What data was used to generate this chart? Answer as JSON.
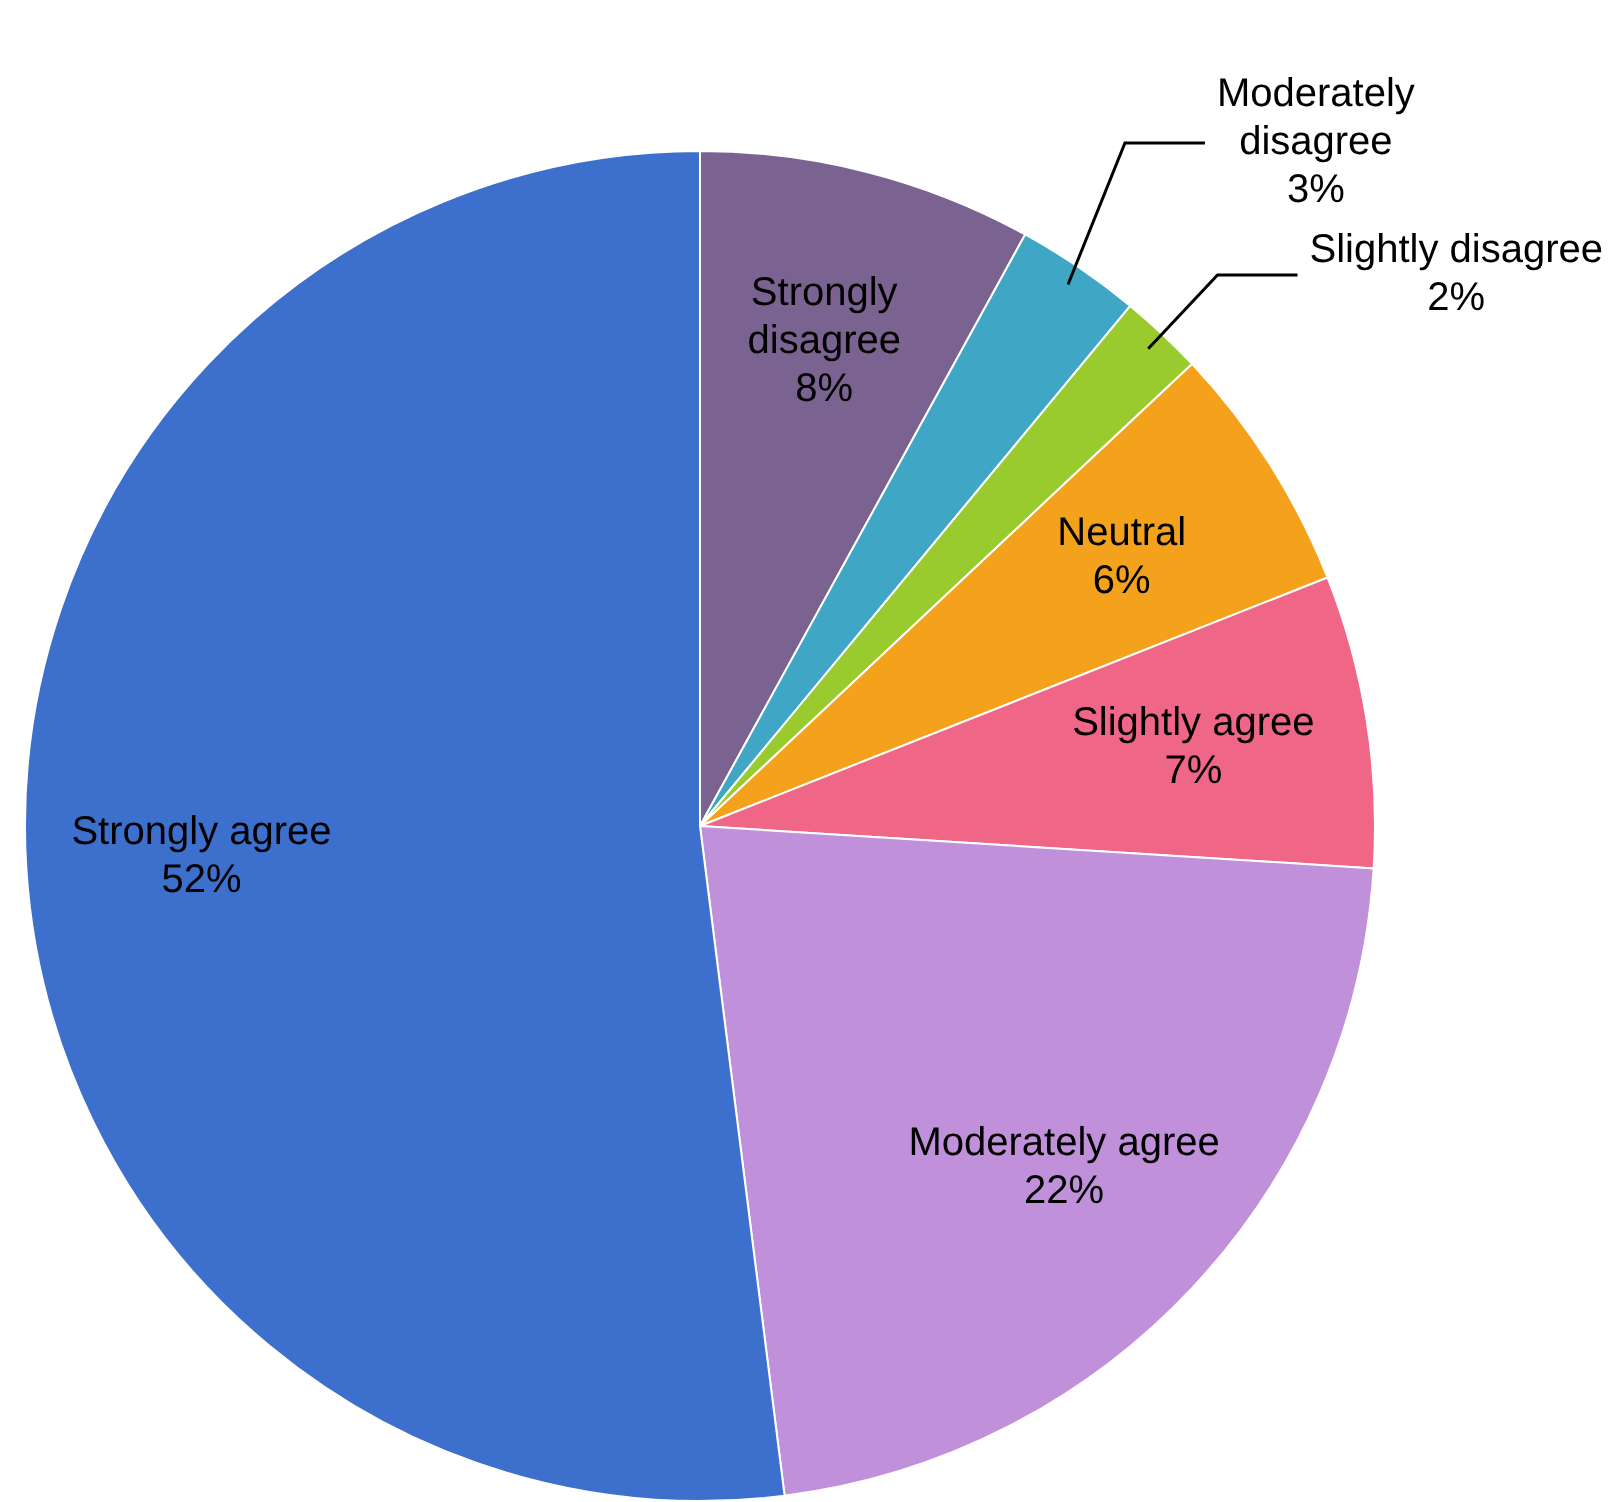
{
  "chart_data": {
    "type": "pie",
    "categories": [
      "Strongly disagree",
      "Moderately disagree",
      "Slightly disagree",
      "Neutral",
      "Slightly agree",
      "Moderately agree",
      "Strongly agree"
    ],
    "values": [
      8,
      3,
      2,
      6,
      7,
      22,
      52
    ],
    "colors": [
      "#7b6391",
      "#3fa6c5",
      "#9acb2e",
      "#f4a21c",
      "#f06686",
      "#c091da",
      "#3d6fcd"
    ],
    "value_labels": [
      "8%",
      "3%",
      "2%",
      "6%",
      "7%",
      "22%",
      "52%"
    ]
  }
}
